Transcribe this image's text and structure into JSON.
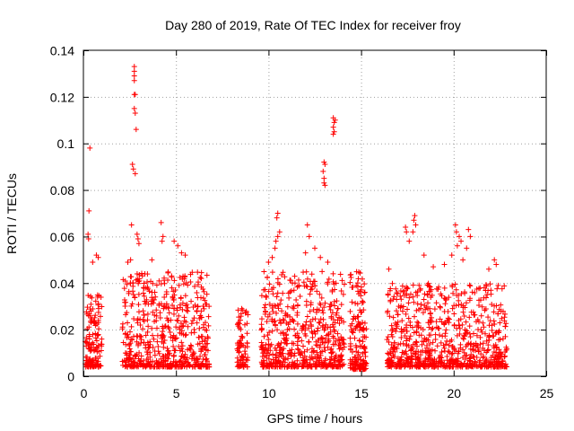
{
  "chart_data": {
    "type": "scatter",
    "title": "Day 280 of 2019, Rate Of TEC Index for receiver froy",
    "xlabel": "GPS time / hours",
    "ylabel": "ROTI / TECUs",
    "xlim": [
      0,
      25
    ],
    "ylim": [
      0,
      0.14
    ],
    "xticks": [
      0,
      5,
      10,
      15,
      20,
      25
    ],
    "xtick_labels": [
      "0",
      "5",
      "10",
      "15",
      "20",
      "25"
    ],
    "yticks": [
      0,
      0.02,
      0.04,
      0.06,
      0.08,
      0.1,
      0.12,
      0.14
    ],
    "ytick_labels": [
      "0",
      "0.02",
      "0.04",
      "0.06",
      "0.08",
      "0.1",
      "0.12",
      "0.14"
    ],
    "grid": true,
    "series": [
      {
        "name": "ROTI",
        "color": "#ff0000",
        "marker": "plus",
        "clusters": [
          {
            "x_range": [
              0.1,
              1.0
            ],
            "y_range": [
              0.004,
              0.035
            ],
            "count": 140
          },
          {
            "x_range": [
              2.1,
              6.8
            ],
            "y_range": [
              0.004,
              0.045
            ],
            "count": 600
          },
          {
            "x_range": [
              8.3,
              8.9
            ],
            "y_range": [
              0.004,
              0.03
            ],
            "count": 80
          },
          {
            "x_range": [
              9.6,
              14.1
            ],
            "y_range": [
              0.004,
              0.045
            ],
            "count": 580
          },
          {
            "x_range": [
              14.4,
              15.3
            ],
            "y_range": [
              0.003,
              0.045
            ],
            "count": 160
          },
          {
            "x_range": [
              16.4,
              22.9
            ],
            "y_range": [
              0.004,
              0.04
            ],
            "count": 800
          }
        ],
        "points": [
          [
            0.35,
            0.098
          ],
          [
            0.3,
            0.071
          ],
          [
            0.25,
            0.061
          ],
          [
            0.28,
            0.059
          ],
          [
            0.5,
            0.049
          ],
          [
            0.7,
            0.052
          ],
          [
            0.8,
            0.051
          ],
          [
            2.75,
            0.133
          ],
          [
            2.75,
            0.131
          ],
          [
            2.75,
            0.129
          ],
          [
            2.75,
            0.127
          ],
          [
            2.8,
            0.121
          ],
          [
            2.75,
            0.121
          ],
          [
            2.75,
            0.115
          ],
          [
            2.8,
            0.113
          ],
          [
            2.85,
            0.106
          ],
          [
            2.65,
            0.091
          ],
          [
            2.7,
            0.089
          ],
          [
            2.8,
            0.087
          ],
          [
            2.6,
            0.065
          ],
          [
            2.9,
            0.061
          ],
          [
            2.95,
            0.059
          ],
          [
            3.0,
            0.057
          ],
          [
            2.4,
            0.049
          ],
          [
            2.55,
            0.05
          ],
          [
            4.2,
            0.066
          ],
          [
            4.3,
            0.06
          ],
          [
            4.25,
            0.058
          ],
          [
            4.9,
            0.058
          ],
          [
            5.1,
            0.056
          ],
          [
            5.3,
            0.053
          ],
          [
            5.5,
            0.052
          ],
          [
            3.7,
            0.05
          ],
          [
            10.5,
            0.07
          ],
          [
            10.45,
            0.068
          ],
          [
            10.6,
            0.062
          ],
          [
            10.5,
            0.06
          ],
          [
            10.4,
            0.058
          ],
          [
            10.35,
            0.055
          ],
          [
            10.2,
            0.051
          ],
          [
            10.0,
            0.049
          ],
          [
            12.1,
            0.065
          ],
          [
            12.2,
            0.06
          ],
          [
            12.0,
            0.053
          ],
          [
            12.5,
            0.055
          ],
          [
            12.8,
            0.051
          ],
          [
            13.2,
            0.049
          ],
          [
            13.0,
            0.092
          ],
          [
            13.05,
            0.091
          ],
          [
            12.95,
            0.088
          ],
          [
            13.0,
            0.085
          ],
          [
            13.0,
            0.083
          ],
          [
            13.05,
            0.082
          ],
          [
            13.5,
            0.111
          ],
          [
            13.6,
            0.11
          ],
          [
            13.55,
            0.109
          ],
          [
            13.5,
            0.107
          ],
          [
            13.55,
            0.105
          ],
          [
            13.5,
            0.104
          ],
          [
            17.4,
            0.064
          ],
          [
            17.45,
            0.062
          ],
          [
            17.9,
            0.069
          ],
          [
            17.85,
            0.067
          ],
          [
            17.95,
            0.065
          ],
          [
            17.8,
            0.062
          ],
          [
            17.6,
            0.058
          ],
          [
            18.4,
            0.052
          ],
          [
            20.1,
            0.065
          ],
          [
            20.15,
            0.062
          ],
          [
            20.3,
            0.06
          ],
          [
            20.4,
            0.058
          ],
          [
            20.2,
            0.056
          ],
          [
            20.8,
            0.063
          ],
          [
            20.9,
            0.06
          ],
          [
            20.7,
            0.055
          ],
          [
            20.5,
            0.05
          ],
          [
            22.2,
            0.05
          ],
          [
            22.3,
            0.048
          ],
          [
            19.9,
            0.052
          ],
          [
            21.9,
            0.046
          ],
          [
            19.5,
            0.048
          ],
          [
            18.9,
            0.047
          ],
          [
            16.5,
            0.046
          ]
        ]
      }
    ]
  }
}
